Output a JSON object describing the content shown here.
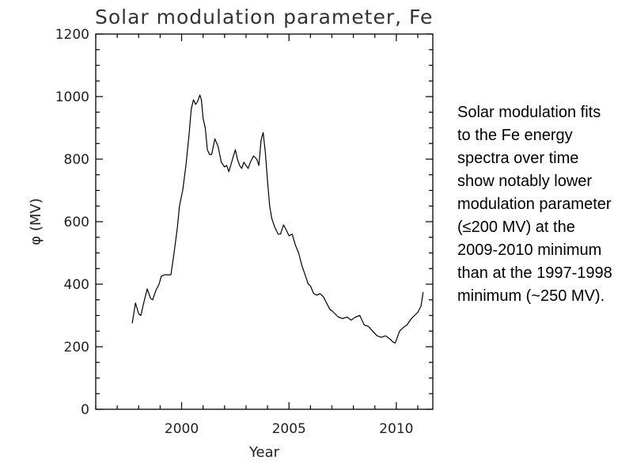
{
  "caption": "Solar modulation fits to the Fe energy spectra over time show notably lower modulation parameter (≤200 MV) at the 2009-2010 minimum than at the 1997-1998 minimum (~250 MV).",
  "chart_data": {
    "type": "line",
    "title": "Solar modulation parameter, Fe",
    "xlabel": "Year",
    "ylabel": "φ (MV)",
    "xlim": [
      1996,
      2011.7
    ],
    "ylim": [
      0,
      1200
    ],
    "xticks": [
      2000,
      2005,
      2010
    ],
    "yticks": [
      0,
      200,
      400,
      600,
      800,
      1000,
      1200
    ],
    "grid": false,
    "series": [
      {
        "x": [
          1997.7,
          1997.85,
          1998.0,
          1998.1,
          1998.25,
          1998.4,
          1998.55,
          1998.65,
          1998.8,
          1998.95,
          1999.05,
          1999.2,
          1999.35,
          1999.5,
          1999.65,
          1999.8,
          1999.9,
          2000.05,
          2000.2,
          2000.35,
          2000.45,
          2000.55,
          2000.65,
          2000.75,
          2000.85,
          2000.92,
          2001.0,
          2001.1,
          2001.2,
          2001.3,
          2001.4,
          2001.55,
          2001.7,
          2001.85,
          2002.0,
          2002.1,
          2002.2,
          2002.35,
          2002.5,
          2002.6,
          2002.7,
          2002.8,
          2002.9,
          2003.0,
          2003.1,
          2003.2,
          2003.35,
          2003.5,
          2003.6,
          2003.7,
          2003.8,
          2003.9,
          2004.0,
          2004.1,
          2004.2,
          2004.35,
          2004.5,
          2004.6,
          2004.75,
          2004.9,
          2005.0,
          2005.15,
          2005.3,
          2005.45,
          2005.6,
          2005.75,
          2005.9,
          2006.0,
          2006.15,
          2006.3,
          2006.45,
          2006.6,
          2006.75,
          2006.9,
          2007.0,
          2007.15,
          2007.3,
          2007.5,
          2007.7,
          2007.9,
          2008.1,
          2008.3,
          2008.5,
          2008.7,
          2008.9,
          2009.1,
          2009.3,
          2009.5,
          2009.7,
          2009.85,
          2009.95,
          2010.05,
          2010.15,
          2010.3,
          2010.5,
          2010.7,
          2010.85,
          2011.0,
          2011.15,
          2011.25
        ],
        "y": [
          275,
          340,
          305,
          300,
          345,
          385,
          355,
          350,
          380,
          400,
          425,
          430,
          430,
          430,
          500,
          580,
          650,
          700,
          780,
          880,
          960,
          990,
          975,
          985,
          1005,
          990,
          930,
          900,
          830,
          815,
          815,
          865,
          840,
          790,
          775,
          780,
          760,
          795,
          830,
          800,
          780,
          770,
          790,
          780,
          770,
          790,
          810,
          800,
          780,
          860,
          885,
          820,
          730,
          650,
          610,
          580,
          560,
          560,
          590,
          570,
          555,
          560,
          525,
          500,
          460,
          430,
          400,
          395,
          370,
          365,
          370,
          360,
          340,
          320,
          315,
          305,
          295,
          290,
          295,
          285,
          295,
          300,
          270,
          265,
          250,
          235,
          230,
          235,
          225,
          215,
          212,
          230,
          250,
          260,
          270,
          290,
          300,
          310,
          330,
          375
        ]
      }
    ]
  }
}
